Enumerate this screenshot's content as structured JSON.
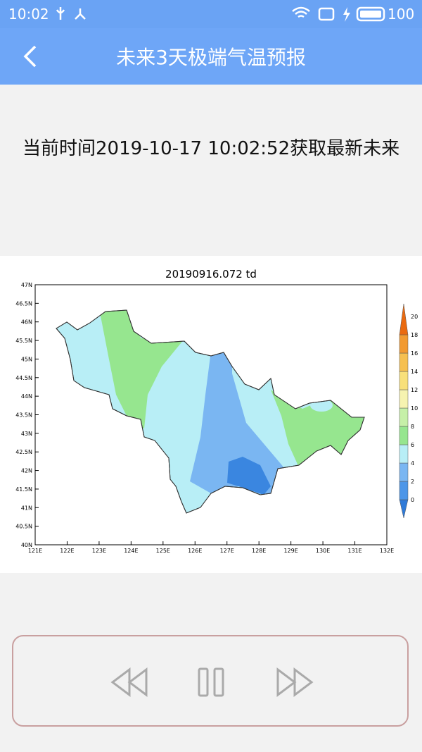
{
  "status": {
    "time": "10:02",
    "battery": "100"
  },
  "header": {
    "title": "未来3天极端气温预报"
  },
  "info": "当前时间2019-10-17 10:02:52获取最新未来",
  "map": {
    "title": "20190916.072  td",
    "lat_labels": [
      "47N",
      "46.5N",
      "46N",
      "45.5N",
      "45N",
      "44.5N",
      "44N",
      "43.5N",
      "43N",
      "42.5N",
      "42N",
      "41.5N",
      "41N",
      "40.5N",
      "40N"
    ],
    "lon_labels": [
      "121E",
      "122E",
      "123E",
      "124E",
      "125E",
      "126E",
      "127E",
      "128E",
      "129E",
      "130E",
      "131E",
      "132E"
    ],
    "colorbar_labels": [
      "0",
      "2",
      "4",
      "6",
      "8",
      "10",
      "12",
      "14",
      "16",
      "18",
      "20"
    ]
  }
}
